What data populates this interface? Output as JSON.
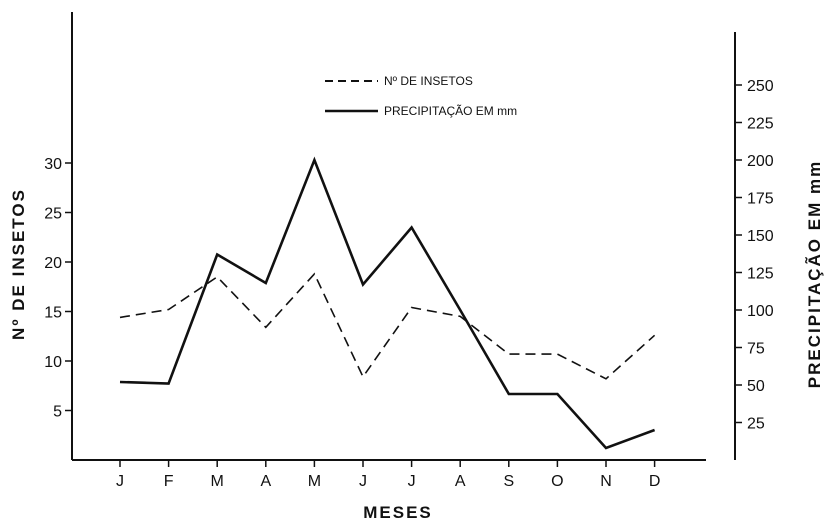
{
  "chart_data": {
    "type": "line",
    "xlabel": "MESES",
    "ylabel_left": "Nº DE INSETOS",
    "ylabel_right": "PRECIPITAÇÃO EM mm",
    "categories": [
      "J",
      "F",
      "M",
      "A",
      "M",
      "J",
      "J",
      "A",
      "S",
      "O",
      "N",
      "D"
    ],
    "ylim_left": [
      0,
      35
    ],
    "ylim_right": [
      0,
      250
    ],
    "yticks_left": [
      5,
      10,
      15,
      20,
      25,
      30
    ],
    "yticks_right": [
      25,
      50,
      75,
      100,
      125,
      150,
      175,
      200,
      225,
      250
    ],
    "series": [
      {
        "name": "Nº DE INSETOS",
        "axis": "left",
        "style": "dashed",
        "values": [
          14.4,
          15.2,
          18.5,
          13.4,
          18.8,
          8.4,
          15.4,
          14.5,
          10.7,
          10.7,
          8.2,
          12.6
        ]
      },
      {
        "name": "PRECIPITAÇÃO EM mm",
        "axis": "right",
        "style": "solid",
        "values": [
          52,
          51,
          137,
          118,
          200,
          117,
          155,
          100,
          44,
          44,
          8,
          20
        ]
      }
    ],
    "legend_position": "top-center",
    "grid": false
  }
}
